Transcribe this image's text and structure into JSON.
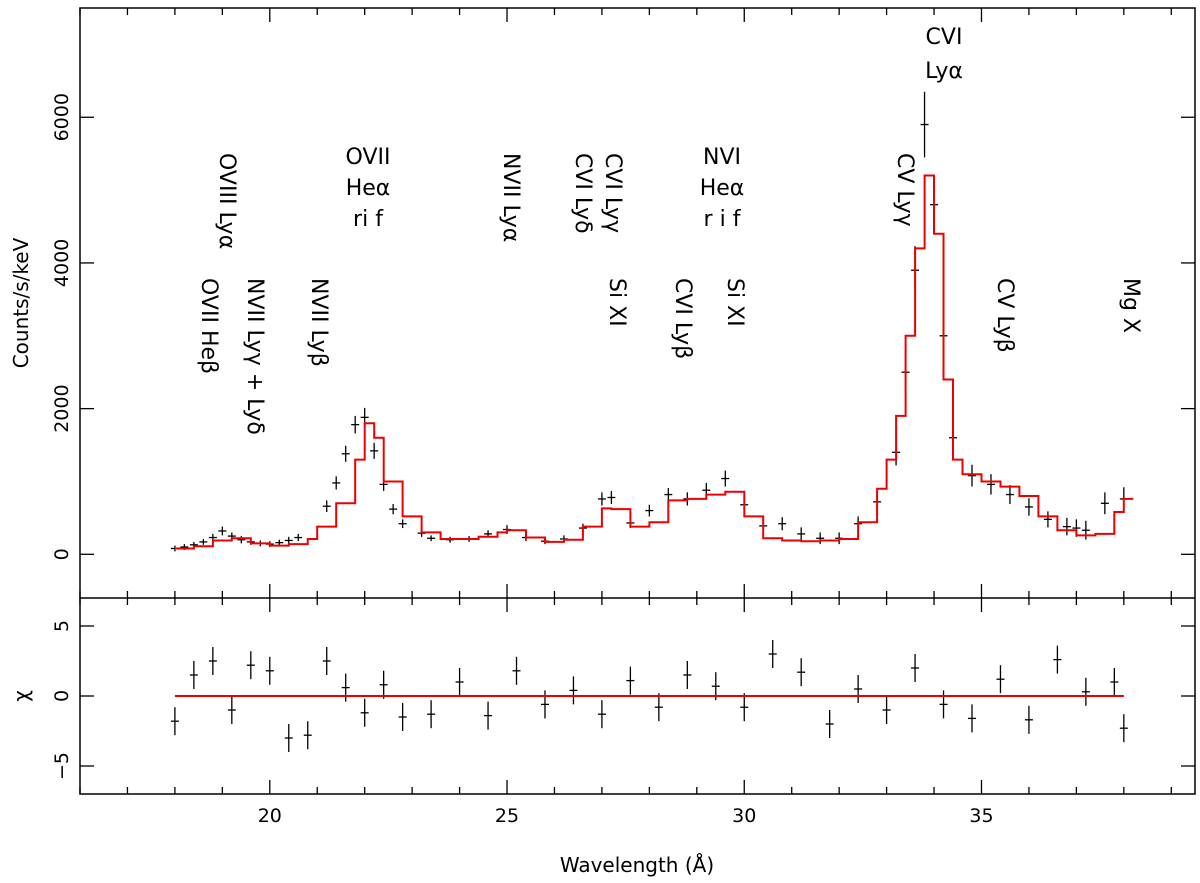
{
  "chart_data": [
    {
      "panel": "spectrum",
      "type": "scatter",
      "xlabel": "Wavelength (Å)",
      "ylabel": "Counts/s/keV",
      "xlim": [
        16,
        39.5
      ],
      "ylim": [
        -600,
        7500
      ],
      "y_ticks": [
        0,
        2000,
        4000,
        6000
      ],
      "y_tick_labels": [
        "0",
        "2000",
        "4000",
        "6000"
      ],
      "x_ticks": [
        20,
        25,
        30,
        35
      ],
      "x_tick_labels": [
        "20",
        "25",
        "30",
        "35"
      ],
      "series": [
        {
          "name": "data",
          "color": "#000000",
          "style": "crosses with error bars",
          "x": [
            18.0,
            18.2,
            18.4,
            18.6,
            18.8,
            19.0,
            19.2,
            19.4,
            19.6,
            19.8,
            20.0,
            20.2,
            20.4,
            20.6,
            21.2,
            21.4,
            21.6,
            21.8,
            22.0,
            22.2,
            22.4,
            22.6,
            22.8,
            23.2,
            23.4,
            23.8,
            24.2,
            24.6,
            25.0,
            25.4,
            25.8,
            26.2,
            26.6,
            27.0,
            27.2,
            27.6,
            28.0,
            28.4,
            28.8,
            29.2,
            29.6,
            30.0,
            30.4,
            30.8,
            31.2,
            31.6,
            32.0,
            32.4,
            32.8,
            33.2,
            33.4,
            33.6,
            33.8,
            34.0,
            34.2,
            34.4,
            34.8,
            35.2,
            35.6,
            36.0,
            36.4,
            36.8,
            37.0,
            37.2,
            37.6,
            38.0
          ],
          "y": [
            80,
            100,
            130,
            170,
            230,
            320,
            250,
            200,
            170,
            150,
            140,
            160,
            190,
            230,
            660,
            980,
            1380,
            1780,
            1880,
            1420,
            960,
            620,
            420,
            290,
            220,
            200,
            210,
            280,
            340,
            230,
            180,
            210,
            360,
            760,
            780,
            430,
            600,
            820,
            760,
            880,
            1040,
            680,
            390,
            420,
            280,
            220,
            220,
            420,
            720,
            1400,
            2500,
            3900,
            5900,
            4800,
            3000,
            1600,
            1080,
            960,
            820,
            650,
            480,
            380,
            360,
            330,
            700,
            760
          ],
          "err": [
            40,
            40,
            40,
            40,
            50,
            60,
            50,
            50,
            40,
            40,
            40,
            40,
            50,
            50,
            80,
            90,
            110,
            120,
            130,
            110,
            90,
            70,
            60,
            50,
            40,
            40,
            40,
            50,
            60,
            50,
            40,
            50,
            60,
            90,
            90,
            70,
            80,
            90,
            90,
            100,
            110,
            100,
            80,
            90,
            90,
            80,
            80,
            100,
            120,
            180,
            260,
            330,
            450,
            380,
            300,
            200,
            150,
            140,
            130,
            120,
            110,
            120,
            120,
            130,
            150,
            160
          ]
        },
        {
          "name": "model",
          "color": "#ee0000",
          "style": "step line",
          "x": [
            18.0,
            18.4,
            18.8,
            19.2,
            19.6,
            20.0,
            20.4,
            20.8,
            21.0,
            21.4,
            21.8,
            22.0,
            22.2,
            22.4,
            22.8,
            23.2,
            23.6,
            24.0,
            24.4,
            24.8,
            25.0,
            25.4,
            25.8,
            26.2,
            26.6,
            27.0,
            27.2,
            27.6,
            28.0,
            28.4,
            28.8,
            29.2,
            29.6,
            30.0,
            30.4,
            30.8,
            31.2,
            31.6,
            32.0,
            32.4,
            32.8,
            33.0,
            33.2,
            33.4,
            33.6,
            33.8,
            34.0,
            34.2,
            34.4,
            34.6,
            35.0,
            35.4,
            35.8,
            36.2,
            36.6,
            37.0,
            37.4,
            37.8,
            38.0
          ],
          "y": [
            80,
            110,
            190,
            220,
            150,
            120,
            140,
            210,
            380,
            700,
            1300,
            1800,
            1600,
            1000,
            520,
            300,
            210,
            210,
            240,
            300,
            330,
            230,
            170,
            200,
            380,
            630,
            620,
            380,
            440,
            740,
            760,
            820,
            860,
            520,
            220,
            190,
            180,
            190,
            210,
            440,
            900,
            1300,
            1900,
            3000,
            4200,
            5200,
            4400,
            2400,
            1300,
            1100,
            1000,
            930,
            800,
            520,
            330,
            260,
            280,
            580,
            760
          ]
        }
      ],
      "annotations": [
        {
          "lines": [
            "OVIII Lyα"
          ],
          "rotated": true
        },
        {
          "lines": [
            "OVII Heβ"
          ],
          "rotated": true
        },
        {
          "lines": [
            "NVII Lyγ + Lyδ"
          ],
          "rotated": true
        },
        {
          "lines": [
            "NVII Lyβ"
          ],
          "rotated": true
        },
        {
          "lines": [
            "OVII",
            "Heα",
            "ri f"
          ],
          "rotated": false
        },
        {
          "lines": [
            "NVII Lyα"
          ],
          "rotated": true
        },
        {
          "lines": [
            "CVI Lyγ",
            "CVI Lyδ"
          ],
          "rotated": true
        },
        {
          "lines": [
            "Si XI"
          ],
          "rotated": true
        },
        {
          "lines": [
            "CVI Lyβ"
          ],
          "rotated": true
        },
        {
          "lines": [
            "NVI",
            "Heα",
            "r i  f"
          ],
          "rotated": false
        },
        {
          "lines": [
            "Si XI"
          ],
          "rotated": true
        },
        {
          "lines": [
            "CV Lyγ"
          ],
          "rotated": true
        },
        {
          "lines": [
            "CVI",
            "Lyα"
          ],
          "rotated": false
        },
        {
          "lines": [
            "CV Lyβ"
          ],
          "rotated": true
        },
        {
          "lines": [
            "Mg X"
          ],
          "rotated": true
        }
      ]
    },
    {
      "panel": "residuals",
      "type": "scatter",
      "xlabel": "Wavelength (Å)",
      "ylabel": "χ",
      "xlim": [
        16,
        39.5
      ],
      "ylim": [
        -7,
        7
      ],
      "y_ticks": [
        -5,
        0,
        5
      ],
      "y_tick_labels": [
        "−5",
        "0",
        "5"
      ],
      "x_ticks": [
        20,
        25,
        30,
        35
      ],
      "x_tick_labels": [
        "20",
        "25",
        "30",
        "35"
      ],
      "series": [
        {
          "name": "residuals",
          "color": "#000000",
          "style": "crosses with error bars",
          "x": [
            18.0,
            18.4,
            18.8,
            19.2,
            19.6,
            20.0,
            20.4,
            20.8,
            21.2,
            21.6,
            22.0,
            22.4,
            22.8,
            23.4,
            24.0,
            24.6,
            25.2,
            25.8,
            26.4,
            27.0,
            27.6,
            28.2,
            28.8,
            29.4,
            30.0,
            30.6,
            31.2,
            31.8,
            32.4,
            33.0,
            33.6,
            34.2,
            34.8,
            35.4,
            36.0,
            36.6,
            37.2,
            37.8,
            38.0
          ],
          "y": [
            -1.8,
            1.5,
            2.5,
            -1.0,
            2.2,
            1.8,
            -3.0,
            -2.8,
            2.5,
            0.6,
            -1.2,
            0.8,
            -1.5,
            -1.3,
            1.0,
            -1.4,
            1.8,
            -0.6,
            0.4,
            -1.3,
            1.1,
            -0.8,
            1.5,
            0.7,
            -0.8,
            3.0,
            1.7,
            -2.0,
            0.5,
            -1.0,
            2.0,
            -0.6,
            -1.6,
            1.2,
            -1.7,
            2.6,
            0.3,
            1.0,
            -2.3
          ],
          "err": [
            1,
            1,
            1,
            1,
            1,
            1,
            1,
            1,
            1,
            1,
            1,
            1,
            1,
            1,
            1,
            1,
            1,
            1,
            1,
            1,
            1,
            1,
            1,
            1,
            1,
            1,
            1,
            1,
            1,
            1,
            1,
            1,
            1,
            1,
            1,
            1,
            1,
            1,
            1
          ]
        },
        {
          "name": "zero line",
          "color": "#ee0000",
          "style": "line",
          "x": [
            18.0,
            38.0
          ],
          "y": [
            0,
            0
          ]
        }
      ]
    }
  ]
}
